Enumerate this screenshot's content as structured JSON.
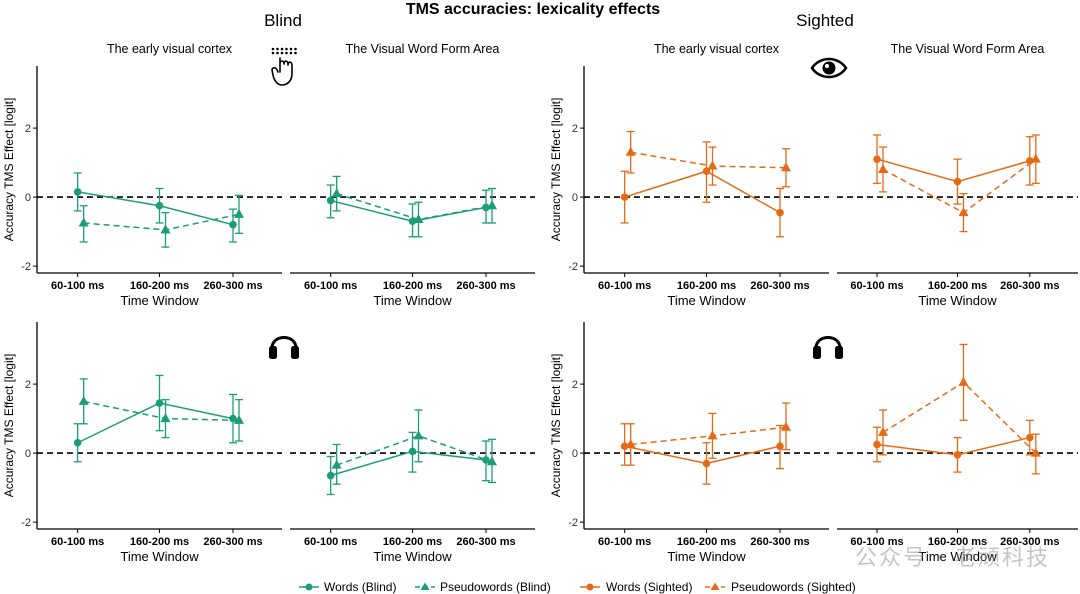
{
  "figure": {
    "title": "TMS accuracies: lexicality effects",
    "group_blind": "Blind",
    "group_sighted": "Sighted",
    "watermark": "公众号 · 老顽科技"
  },
  "legend": {
    "items": [
      {
        "label": "Words (Blind)",
        "color": "#1b9e77",
        "marker": "circle",
        "dash": "solid"
      },
      {
        "label": "Pseudowords (Blind)",
        "color": "#1b9e77",
        "marker": "triangle",
        "dash": "dashed"
      },
      {
        "label": "Words (Sighted)",
        "color": "#e66a16",
        "marker": "circle",
        "dash": "solid"
      },
      {
        "label": "Pseudowords (Sighted)",
        "color": "#e66a16",
        "marker": "triangle",
        "dash": "dashed"
      }
    ]
  },
  "chart_data": [
    {
      "type": "line",
      "id": "blind-visual-evc",
      "title": "The early visual cortex",
      "group": "Blind",
      "modality": "visual-tms",
      "xlabel": "Time Window",
      "ylabel": "Accuracy TMS Effect [logit]",
      "ylim": [
        -2.2,
        3.8
      ],
      "yticks": [
        -2,
        0,
        2
      ],
      "categories": [
        "60-100 ms",
        "160-200 ms",
        "260-300 ms"
      ],
      "color": "#1b9e77",
      "series": [
        {
          "name": "Words (Blind)",
          "values": [
            0.15,
            -0.25,
            -0.8
          ],
          "lower": [
            -0.4,
            -0.75,
            -1.3
          ],
          "upper": [
            0.7,
            0.25,
            -0.35
          ]
        },
        {
          "name": "Pseudowords (Blind)",
          "values": [
            -0.75,
            -0.95,
            -0.5
          ],
          "lower": [
            -1.3,
            -1.45,
            -1.05
          ],
          "upper": [
            -0.25,
            -0.45,
            0.05
          ]
        }
      ]
    },
    {
      "type": "line",
      "id": "blind-visual-vwfa",
      "title": "The Visual Word Form Area",
      "group": "Blind",
      "modality": "visual-tms",
      "xlabel": "Time Window",
      "ylabel": "",
      "ylim": [
        -2.2,
        3.8
      ],
      "yticks": [
        -2,
        0,
        2
      ],
      "categories": [
        "60-100 ms",
        "160-200 ms",
        "260-300 ms"
      ],
      "color": "#1b9e77",
      "series": [
        {
          "name": "Words (Blind)",
          "values": [
            -0.1,
            -0.7,
            -0.3
          ],
          "lower": [
            -0.6,
            -1.15,
            -0.75
          ],
          "upper": [
            0.35,
            -0.2,
            0.2
          ]
        },
        {
          "name": "Pseudowords (Blind)",
          "values": [
            0.1,
            -0.65,
            -0.25
          ],
          "lower": [
            -0.4,
            -1.15,
            -0.75
          ],
          "upper": [
            0.6,
            -0.15,
            0.25
          ]
        }
      ]
    },
    {
      "type": "line",
      "id": "sighted-visual-evc",
      "title": "The early visual cortex",
      "group": "Sighted",
      "modality": "visual",
      "xlabel": "Time Window",
      "ylabel": "Accuracy TMS Effect [logit]",
      "ylim": [
        -2.2,
        3.8
      ],
      "yticks": [
        -2,
        0,
        2
      ],
      "categories": [
        "60-100 ms",
        "160-200 ms",
        "260-300 ms"
      ],
      "color": "#e66a16",
      "series": [
        {
          "name": "Words (Sighted)",
          "values": [
            0.0,
            0.75,
            -0.45
          ],
          "lower": [
            -0.75,
            -0.15,
            -1.15
          ],
          "upper": [
            0.75,
            1.6,
            0.25
          ]
        },
        {
          "name": "Pseudowords (Sighted)",
          "values": [
            1.3,
            0.9,
            0.85
          ],
          "lower": [
            0.7,
            0.35,
            0.3
          ],
          "upper": [
            1.9,
            1.45,
            1.4
          ]
        }
      ]
    },
    {
      "type": "line",
      "id": "sighted-visual-vwfa",
      "title": "The Visual Word Form Area",
      "group": "Sighted",
      "modality": "visual",
      "xlabel": "Time Window",
      "ylabel": "",
      "ylim": [
        -2.2,
        3.8
      ],
      "yticks": [
        -2,
        0,
        2
      ],
      "categories": [
        "60-100 ms",
        "160-200 ms",
        "260-300 ms"
      ],
      "color": "#e66a16",
      "series": [
        {
          "name": "Words (Sighted)",
          "values": [
            1.1,
            0.45,
            1.05
          ],
          "lower": [
            0.4,
            -0.2,
            0.35
          ],
          "upper": [
            1.8,
            1.1,
            1.75
          ]
        },
        {
          "name": "Pseudowords (Sighted)",
          "values": [
            0.8,
            -0.45,
            1.1
          ],
          "lower": [
            0.15,
            -1.0,
            0.4
          ],
          "upper": [
            1.45,
            0.1,
            1.8
          ]
        }
      ]
    },
    {
      "type": "line",
      "id": "blind-auditory-evc",
      "title": "",
      "group": "Blind",
      "modality": "auditory",
      "xlabel": "Time Window",
      "ylabel": "Accuracy TMS Effect [logit]",
      "ylim": [
        -2.2,
        3.8
      ],
      "yticks": [
        -2,
        0,
        2
      ],
      "categories": [
        "60-100 ms",
        "160-200 ms",
        "260-300 ms"
      ],
      "color": "#1b9e77",
      "series": [
        {
          "name": "Words (Blind)",
          "values": [
            0.3,
            1.45,
            1.0
          ],
          "lower": [
            -0.25,
            0.65,
            0.3
          ],
          "upper": [
            0.85,
            2.25,
            1.7
          ]
        },
        {
          "name": "Pseudowords (Blind)",
          "values": [
            1.5,
            1.0,
            0.95
          ],
          "lower": [
            0.85,
            0.45,
            0.35
          ],
          "upper": [
            2.15,
            1.55,
            1.55
          ]
        }
      ]
    },
    {
      "type": "line",
      "id": "blind-auditory-vwfa",
      "title": "",
      "group": "Blind",
      "modality": "auditory",
      "xlabel": "Time Window",
      "ylabel": "",
      "ylim": [
        -2.2,
        3.8
      ],
      "yticks": [
        -2,
        0,
        2
      ],
      "categories": [
        "60-100 ms",
        "160-200 ms",
        "260-300 ms"
      ],
      "color": "#1b9e77",
      "series": [
        {
          "name": "Words (Blind)",
          "values": [
            -0.65,
            0.05,
            -0.2
          ],
          "lower": [
            -1.2,
            -0.55,
            -0.8
          ],
          "upper": [
            -0.1,
            0.6,
            0.35
          ]
        },
        {
          "name": "Pseudowords (Blind)",
          "values": [
            -0.35,
            0.5,
            -0.25
          ],
          "lower": [
            -0.9,
            -0.25,
            -0.85
          ],
          "upper": [
            0.25,
            1.25,
            0.4
          ]
        }
      ]
    },
    {
      "type": "line",
      "id": "sighted-auditory-evc",
      "title": "",
      "group": "Sighted",
      "modality": "auditory",
      "xlabel": "Time Window",
      "ylabel": "Accuracy TMS Effect [logit]",
      "ylim": [
        -2.2,
        3.8
      ],
      "yticks": [
        -2,
        0,
        2
      ],
      "categories": [
        "60-100 ms",
        "160-200 ms",
        "260-300 ms"
      ],
      "color": "#e66a16",
      "series": [
        {
          "name": "Words (Sighted)",
          "values": [
            0.2,
            -0.3,
            0.2
          ],
          "lower": [
            -0.35,
            -0.9,
            -0.45
          ],
          "upper": [
            0.85,
            0.3,
            0.8
          ]
        },
        {
          "name": "Pseudowords (Sighted)",
          "values": [
            0.25,
            0.5,
            0.75
          ],
          "lower": [
            -0.35,
            -0.15,
            0.1
          ],
          "upper": [
            0.85,
            1.15,
            1.45
          ]
        }
      ]
    },
    {
      "type": "line",
      "id": "sighted-auditory-vwfa",
      "title": "",
      "group": "Sighted",
      "modality": "auditory",
      "xlabel": "Time Window",
      "ylabel": "",
      "ylim": [
        -2.2,
        3.8
      ],
      "yticks": [
        -2,
        0,
        2
      ],
      "categories": [
        "60-100 ms",
        "160-200 ms",
        "260-300 ms"
      ],
      "color": "#e66a16",
      "series": [
        {
          "name": "Words (Sighted)",
          "values": [
            0.25,
            -0.05,
            0.45
          ],
          "lower": [
            -0.25,
            -0.55,
            -0.05
          ],
          "upper": [
            0.75,
            0.45,
            0.95
          ]
        },
        {
          "name": "Pseudowords (Sighted)",
          "values": [
            0.6,
            2.05,
            0.0
          ],
          "lower": [
            -0.05,
            0.95,
            -0.6
          ],
          "upper": [
            1.25,
            3.15,
            0.55
          ]
        }
      ]
    }
  ]
}
